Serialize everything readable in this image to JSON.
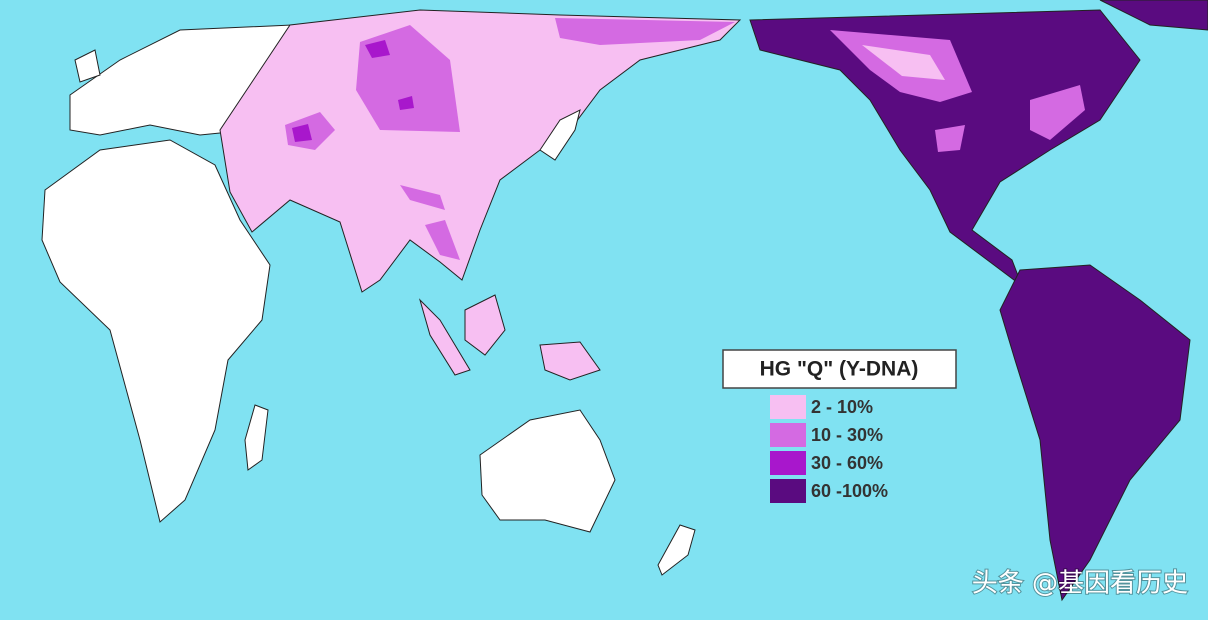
{
  "map": {
    "legend": {
      "title": "HG  \"Q\" (Y-DNA)",
      "items": [
        {
          "label": "2  - 10%",
          "color": "#f7bff2"
        },
        {
          "label": "10 - 30%",
          "color": "#d46ae2"
        },
        {
          "label": "30 - 60%",
          "color": "#a817cc"
        },
        {
          "label": "60 -100%",
          "color": "#5a0b80"
        }
      ]
    },
    "watermark": "头条 @基因看历史"
  }
}
